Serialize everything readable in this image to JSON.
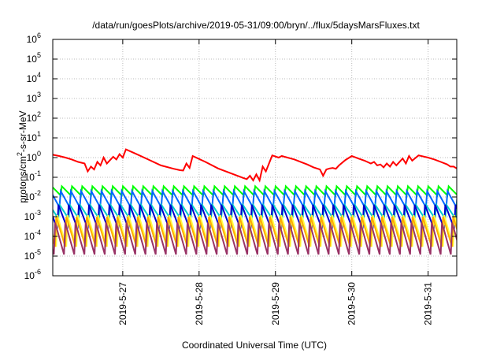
{
  "chart_data": {
    "type": "line",
    "title": "/data/run/goesPlots/archive/2019-05-31/09:00/bryn/../flux/5daysMarsFluxes.txt",
    "xlabel": "Coordinated Universal Time (UTC)",
    "ylabel": {
      "base": "protons/cm",
      "sup": "2",
      "rest": "-s-sr-MeV"
    },
    "x_range": [
      "2019-05-26T02:00",
      "2019-05-31T09:00"
    ],
    "x_ticks": [
      "2019-5-27",
      "2019-5-28",
      "2019-5-29",
      "2019-5-30",
      "2019-5-31"
    ],
    "y_scale": "log",
    "ylim": [
      1e-06,
      1000000.0
    ],
    "y_ticks": [
      {
        "value": 1e-06,
        "base": "10",
        "exp": "-6"
      },
      {
        "value": 1e-05,
        "base": "10",
        "exp": "-5"
      },
      {
        "value": 0.0001,
        "base": "10",
        "exp": "-4"
      },
      {
        "value": 0.001,
        "base": "10",
        "exp": "-3"
      },
      {
        "value": 0.01,
        "base": "10",
        "exp": "-2"
      },
      {
        "value": 0.1,
        "base": "10",
        "exp": "-1"
      },
      {
        "value": 1.0,
        "base": "10",
        "exp": "0"
      },
      {
        "value": 10.0,
        "base": "10",
        "exp": "1"
      },
      {
        "value": 100.0,
        "base": "10",
        "exp": "2"
      },
      {
        "value": 1000.0,
        "base": "10",
        "exp": "3"
      },
      {
        "value": 10000.0,
        "base": "10",
        "exp": "4"
      },
      {
        "value": 100000.0,
        "base": "10",
        "exp": "5"
      },
      {
        "value": 1000000.0,
        "base": "10",
        "exp": "6"
      }
    ],
    "grid": true,
    "series": [
      {
        "color": "#ff0000",
        "points": [
          [
            "2019-05-26T02:00",
            1.4
          ],
          [
            "2019-05-26T04:00",
            1.2
          ],
          [
            "2019-05-26T06:00",
            1.0
          ],
          [
            "2019-05-26T08:00",
            0.8
          ],
          [
            "2019-05-26T10:00",
            0.6
          ],
          [
            "2019-05-26T11:00",
            0.55
          ],
          [
            "2019-05-26T12:00",
            0.5
          ],
          [
            "2019-05-26T13:00",
            0.2
          ],
          [
            "2019-05-26T14:00",
            0.35
          ],
          [
            "2019-05-26T15:00",
            0.25
          ],
          [
            "2019-05-26T16:00",
            0.6
          ],
          [
            "2019-05-26T17:00",
            0.4
          ],
          [
            "2019-05-26T18:00",
            1.0
          ],
          [
            "2019-05-26T19:00",
            0.5
          ],
          [
            "2019-05-26T21:00",
            1.1
          ],
          [
            "2019-05-26T22:00",
            0.8
          ],
          [
            "2019-05-26T23:00",
            1.5
          ],
          [
            "2019-05-27T00:00",
            1.0
          ],
          [
            "2019-05-27T01:00",
            2.6
          ],
          [
            "2019-05-27T04:00",
            1.6
          ],
          [
            "2019-05-27T08:00",
            0.8
          ],
          [
            "2019-05-27T12:00",
            0.4
          ],
          [
            "2019-05-27T16:00",
            0.27
          ],
          [
            "2019-05-27T18:00",
            0.23
          ],
          [
            "2019-05-27T19:00",
            0.22
          ],
          [
            "2019-05-27T20:00",
            0.5
          ],
          [
            "2019-05-27T21:00",
            0.3
          ],
          [
            "2019-05-27T22:00",
            1.2
          ],
          [
            "2019-05-28T02:00",
            0.6
          ],
          [
            "2019-05-28T06:00",
            0.28
          ],
          [
            "2019-05-28T10:00",
            0.16
          ],
          [
            "2019-05-28T14:00",
            0.09
          ],
          [
            "2019-05-28T15:00",
            0.08
          ],
          [
            "2019-05-28T16:00",
            0.12
          ],
          [
            "2019-05-28T17:00",
            0.07
          ],
          [
            "2019-05-28T18:00",
            0.14
          ],
          [
            "2019-05-28T19:00",
            0.07
          ],
          [
            "2019-05-28T20:00",
            0.35
          ],
          [
            "2019-05-28T21:00",
            0.2
          ],
          [
            "2019-05-28T23:00",
            1.3
          ],
          [
            "2019-05-29T01:00",
            1.0
          ],
          [
            "2019-05-29T02:00",
            1.2
          ],
          [
            "2019-05-29T06:00",
            0.8
          ],
          [
            "2019-05-29T10:00",
            0.45
          ],
          [
            "2019-05-29T12:00",
            0.32
          ],
          [
            "2019-05-29T14:00",
            0.25
          ],
          [
            "2019-05-29T15:00",
            0.12
          ],
          [
            "2019-05-29T16:00",
            0.25
          ],
          [
            "2019-05-29T17:00",
            0.28
          ],
          [
            "2019-05-29T18:00",
            0.3
          ],
          [
            "2019-05-29T19:00",
            0.27
          ],
          [
            "2019-05-29T20:00",
            0.4
          ],
          [
            "2019-05-29T22:00",
            0.75
          ],
          [
            "2019-05-30T00:00",
            1.2
          ],
          [
            "2019-05-30T02:00",
            0.9
          ],
          [
            "2019-05-30T04:00",
            0.7
          ],
          [
            "2019-05-30T06:00",
            0.5
          ],
          [
            "2019-05-30T07:00",
            0.6
          ],
          [
            "2019-05-30T08:00",
            0.4
          ],
          [
            "2019-05-30T09:00",
            0.45
          ],
          [
            "2019-05-30T10:00",
            0.32
          ],
          [
            "2019-05-30T11:00",
            0.5
          ],
          [
            "2019-05-30T12:00",
            0.35
          ],
          [
            "2019-05-30T13:00",
            0.6
          ],
          [
            "2019-05-30T14:00",
            0.4
          ],
          [
            "2019-05-30T16:00",
            0.9
          ],
          [
            "2019-05-30T17:00",
            0.5
          ],
          [
            "2019-05-30T18:00",
            1.2
          ],
          [
            "2019-05-30T19:00",
            0.7
          ],
          [
            "2019-05-30T21:00",
            1.3
          ],
          [
            "2019-05-31T00:00",
            1.0
          ],
          [
            "2019-05-31T02:00",
            0.8
          ],
          [
            "2019-05-31T04:00",
            0.6
          ],
          [
            "2019-05-31T06:00",
            0.45
          ],
          [
            "2019-05-31T07:00",
            0.35
          ],
          [
            "2019-05-31T08:00",
            0.35
          ],
          [
            "2019-05-31T09:00",
            0.28
          ]
        ]
      },
      {
        "color": "#00ff00",
        "sawtooth": {
          "low": 0.012,
          "high": 0.035,
          "period_hours": 3.2
        }
      },
      {
        "color": "#0066ff",
        "sawtooth": {
          "low": 0.003,
          "high": 0.02,
          "period_hours": 3.2
        }
      },
      {
        "color": "#00cccc",
        "sawtooth": {
          "low": 0.0008,
          "high": 0.004,
          "period_hours": 3.2
        }
      },
      {
        "color": "#0000cc",
        "sawtooth": {
          "low": 0.00025,
          "high": 0.004,
          "period_hours": 3.2
        }
      },
      {
        "color": "#ffff44",
        "sawtooth": {
          "low": 3e-05,
          "high": 0.0012,
          "period_hours": 3.2
        }
      },
      {
        "color": "#ffaa00",
        "sawtooth": {
          "low": 3e-05,
          "high": 0.001,
          "period_hours": 3.2
        }
      },
      {
        "color": "#993366",
        "sawtooth": {
          "low": 1.2e-05,
          "high": 0.0005,
          "period_hours": 3.2
        }
      }
    ]
  }
}
